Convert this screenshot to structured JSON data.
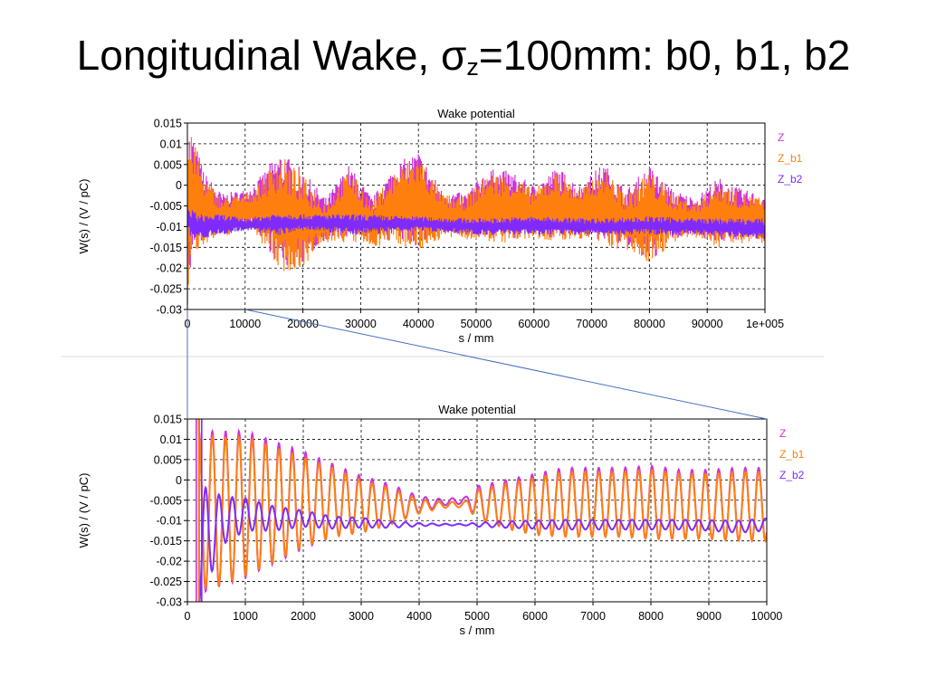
{
  "slide": {
    "title_main": "Longitudinal Wake, σ",
    "title_sub": "z",
    "title_tail": "=100mm: b0, b1, b2"
  },
  "colors": {
    "Z": "#cc33dd",
    "Z_b1": "#ff7f0e",
    "Z_b2": "#7f2bff",
    "grid": "#000000",
    "zoom_lines": "#4472c4",
    "separator": "#d9d9d9"
  },
  "chart_data": [
    {
      "type": "line",
      "title": "Wake potential",
      "xlabel": "s / mm",
      "ylabel": "W(s) / (V / pC)",
      "xlim": [
        0,
        100000
      ],
      "ylim": [
        -0.03,
        0.015
      ],
      "x_ticks": [
        0,
        10000,
        20000,
        30000,
        40000,
        50000,
        60000,
        70000,
        80000,
        90000,
        100000
      ],
      "x_tick_labels": [
        "0",
        "10000",
        "20000",
        "30000",
        "40000",
        "50000",
        "60000",
        "70000",
        "80000",
        "90000",
        "1e+005"
      ],
      "y_ticks": [
        0.015,
        0.01,
        0.005,
        0,
        -0.005,
        -0.01,
        -0.015,
        -0.02,
        -0.025,
        -0.03
      ],
      "y_tick_labels": [
        "0.015",
        "0.01",
        "0.005",
        "0",
        "-0.005",
        "-0.01",
        "-0.015",
        "-0.02",
        "-0.025",
        "-0.03"
      ],
      "grid": true,
      "legend": "right",
      "series": [
        {
          "name": "Z",
          "x": [
            0,
            1000,
            3000,
            6000,
            10000,
            12000,
            16000,
            19000,
            24000,
            28000,
            32000,
            36000,
            40000,
            44000,
            48000,
            52000,
            56000,
            60000,
            64000,
            68000,
            72000,
            76000,
            80000,
            84000,
            88000,
            92000,
            96000,
            100000
          ],
          "upper": [
            0.015,
            0.012,
            0.003,
            -0.002,
            -0.001,
            0.001,
            0.0085,
            0.005,
            -0.003,
            0.005,
            -0.003,
            0.005,
            0.0085,
            -0.001,
            -0.002,
            0.004,
            0.0035,
            0.0,
            0.0045,
            0.0,
            0.0055,
            -0.001,
            0.005,
            -0.001,
            -0.003,
            0.002,
            -0.001,
            -0.002
          ],
          "lower": [
            -0.03,
            -0.016,
            -0.013,
            -0.012,
            -0.009,
            -0.011,
            -0.02,
            -0.02,
            -0.013,
            -0.013,
            -0.014,
            -0.013,
            -0.015,
            -0.012,
            -0.012,
            -0.013,
            -0.013,
            -0.012,
            -0.013,
            -0.012,
            -0.014,
            -0.015,
            -0.019,
            -0.013,
            -0.012,
            -0.014,
            -0.013,
            -0.013
          ]
        },
        {
          "name": "Z_b1",
          "x": [
            0,
            1000,
            3000,
            6000,
            10000,
            12000,
            16000,
            19000,
            24000,
            28000,
            32000,
            36000,
            40000,
            44000,
            48000,
            52000,
            56000,
            60000,
            64000,
            68000,
            72000,
            76000,
            80000,
            84000,
            88000,
            92000,
            96000,
            100000
          ],
          "upper": [
            0.014,
            0.011,
            0.002,
            -0.003,
            -0.002,
            0.0,
            0.0075,
            0.004,
            -0.004,
            0.004,
            -0.004,
            0.004,
            0.0075,
            -0.002,
            -0.003,
            0.003,
            0.0025,
            -0.001,
            0.0035,
            -0.001,
            0.0045,
            -0.002,
            0.004,
            -0.002,
            -0.004,
            0.001,
            -0.002,
            -0.003
          ],
          "lower": [
            -0.03,
            -0.017,
            -0.014,
            -0.013,
            -0.01,
            -0.012,
            -0.021,
            -0.021,
            -0.014,
            -0.014,
            -0.015,
            -0.014,
            -0.016,
            -0.013,
            -0.013,
            -0.014,
            -0.014,
            -0.013,
            -0.014,
            -0.013,
            -0.015,
            -0.016,
            -0.019,
            -0.014,
            -0.013,
            -0.015,
            -0.014,
            -0.014
          ]
        },
        {
          "name": "Z_b2",
          "x": [
            0,
            2000,
            6000,
            10000,
            16000,
            20000,
            30000,
            40000,
            50000,
            60000,
            70000,
            80000,
            90000,
            100000
          ],
          "upper": [
            -0.005,
            -0.007,
            -0.007,
            -0.008,
            -0.0065,
            -0.007,
            -0.007,
            -0.0075,
            -0.008,
            -0.0075,
            -0.008,
            -0.0075,
            -0.008,
            -0.008
          ],
          "lower": [
            -0.012,
            -0.013,
            -0.012,
            -0.011,
            -0.012,
            -0.011,
            -0.012,
            -0.011,
            -0.012,
            -0.012,
            -0.012,
            -0.012,
            -0.012,
            -0.013
          ]
        }
      ]
    },
    {
      "type": "line",
      "title": "Wake potential",
      "xlabel": "s / mm",
      "ylabel": "W(s) / (V / pC)",
      "xlim": [
        0,
        10000
      ],
      "ylim": [
        -0.03,
        0.015
      ],
      "x_ticks": [
        0,
        1000,
        2000,
        3000,
        4000,
        5000,
        6000,
        7000,
        8000,
        9000,
        10000
      ],
      "x_tick_labels": [
        "0",
        "1000",
        "2000",
        "3000",
        "4000",
        "5000",
        "6000",
        "7000",
        "8000",
        "9000",
        "10000"
      ],
      "y_ticks": [
        0.015,
        0.01,
        0.005,
        0,
        -0.005,
        -0.01,
        -0.015,
        -0.02,
        -0.025,
        -0.03
      ],
      "y_tick_labels": [
        "0.015",
        "0.01",
        "0.005",
        "0",
        "-0.005",
        "-0.01",
        "-0.015",
        "-0.02",
        "-0.025",
        "-0.03"
      ],
      "grid": true,
      "legend": "right",
      "period_mm": 230,
      "series": [
        {
          "name": "Z",
          "x": [
            200,
            600,
            1000,
            1500,
            2000,
            2500,
            3000,
            3500,
            4000,
            4400,
            4800,
            5000,
            5500,
            6000,
            6500,
            7000,
            7500,
            8000,
            8500,
            9000,
            9500,
            10000
          ],
          "center": [
            -0.008,
            -0.007,
            -0.006,
            -0.0055,
            -0.005,
            -0.005,
            -0.006,
            -0.006,
            -0.006,
            -0.0055,
            -0.005,
            -0.0055,
            -0.006,
            -0.006,
            -0.0055,
            -0.0055,
            -0.0055,
            -0.0055,
            -0.006,
            -0.006,
            -0.006,
            -0.006
          ],
          "amplitude": [
            0.02,
            0.019,
            0.018,
            0.015,
            0.012,
            0.009,
            0.007,
            0.005,
            0.002,
            0.0008,
            0.0008,
            0.004,
            0.006,
            0.0075,
            0.0085,
            0.0085,
            0.0085,
            0.009,
            0.0085,
            0.0085,
            0.009,
            0.009
          ]
        },
        {
          "name": "Z_b1",
          "x": [
            200,
            600,
            1000,
            1500,
            2000,
            2500,
            3000,
            3500,
            4000,
            4400,
            4800,
            5000,
            5500,
            6000,
            6500,
            7000,
            7500,
            8000,
            8500,
            9000,
            9500,
            10000
          ],
          "center": [
            -0.008,
            -0.0075,
            -0.0065,
            -0.006,
            -0.0055,
            -0.0055,
            -0.0065,
            -0.0065,
            -0.0065,
            -0.0062,
            -0.006,
            -0.006,
            -0.0065,
            -0.0065,
            -0.006,
            -0.006,
            -0.006,
            -0.006,
            -0.0065,
            -0.0065,
            -0.0065,
            -0.0065
          ],
          "amplitude": [
            0.019,
            0.018,
            0.017,
            0.014,
            0.011,
            0.0085,
            0.0065,
            0.0045,
            0.0018,
            0.0007,
            0.0007,
            0.0035,
            0.0055,
            0.007,
            0.008,
            0.008,
            0.008,
            0.0085,
            0.008,
            0.008,
            0.0085,
            0.0085
          ]
        },
        {
          "name": "Z_b2",
          "x": [
            200,
            600,
            1000,
            1500,
            2000,
            2500,
            3000,
            3500,
            4000,
            4400,
            4800,
            5000,
            5500,
            6000,
            6500,
            7000,
            7500,
            8000,
            8500,
            9000,
            9500,
            10000
          ],
          "center": [
            -0.016,
            -0.01,
            -0.0085,
            -0.0095,
            -0.0095,
            -0.0105,
            -0.0105,
            -0.011,
            -0.011,
            -0.011,
            -0.011,
            -0.011,
            -0.011,
            -0.011,
            -0.011,
            -0.011,
            -0.011,
            -0.011,
            -0.011,
            -0.0112,
            -0.0115,
            -0.011
          ],
          "amplitude": [
            0.015,
            0.006,
            0.004,
            0.003,
            0.002,
            0.0015,
            0.0012,
            0.0008,
            0.0004,
            0.0002,
            0.0002,
            0.0005,
            0.0008,
            0.001,
            0.0012,
            0.0012,
            0.0012,
            0.0012,
            0.0012,
            0.0013,
            0.0015,
            0.0015
          ]
        }
      ]
    }
  ]
}
